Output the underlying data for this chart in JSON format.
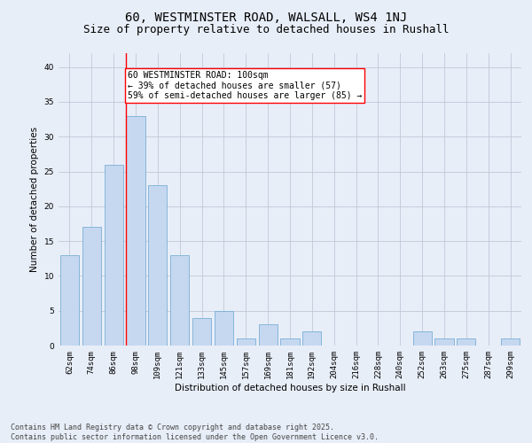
{
  "title1": "60, WESTMINSTER ROAD, WALSALL, WS4 1NJ",
  "title2": "Size of property relative to detached houses in Rushall",
  "xlabel": "Distribution of detached houses by size in Rushall",
  "ylabel": "Number of detached properties",
  "bar_labels": [
    "62sqm",
    "74sqm",
    "86sqm",
    "98sqm",
    "109sqm",
    "121sqm",
    "133sqm",
    "145sqm",
    "157sqm",
    "169sqm",
    "181sqm",
    "192sqm",
    "204sqm",
    "216sqm",
    "228sqm",
    "240sqm",
    "252sqm",
    "263sqm",
    "275sqm",
    "287sqm",
    "299sqm"
  ],
  "bar_values": [
    13,
    17,
    26,
    33,
    23,
    13,
    4,
    5,
    1,
    3,
    1,
    2,
    0,
    0,
    0,
    0,
    2,
    1,
    1,
    0,
    1
  ],
  "bar_color": "#c5d8f0",
  "bar_edge_color": "#7aaed6",
  "vline_index": 3,
  "vline_color": "red",
  "annotation_text": "60 WESTMINSTER ROAD: 100sqm\n← 39% of detached houses are smaller (57)\n59% of semi-detached houses are larger (85) →",
  "ylim": [
    0,
    42
  ],
  "yticks": [
    0,
    5,
    10,
    15,
    20,
    25,
    30,
    35,
    40
  ],
  "grid_color": "#c0c8d8",
  "bg_color": "#e8eef8",
  "footer_text": "Contains HM Land Registry data © Crown copyright and database right 2025.\nContains public sector information licensed under the Open Government Licence v3.0.",
  "title_fontsize": 10,
  "subtitle_fontsize": 9,
  "axis_label_fontsize": 7.5,
  "tick_fontsize": 6.5,
  "annotation_fontsize": 7,
  "footer_fontsize": 6
}
